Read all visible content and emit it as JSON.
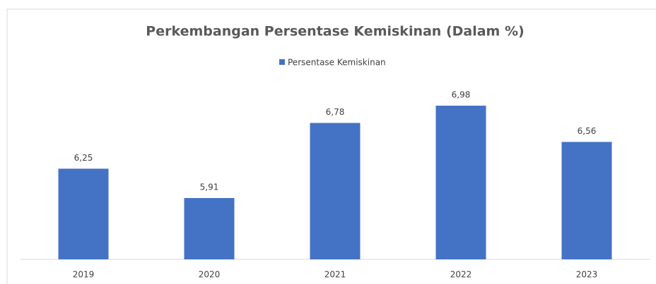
{
  "chart_data": {
    "type": "bar",
    "title": "Perkembangan Persentase Kemiskinan (Dalam %)",
    "categories": [
      "2019",
      "2020",
      "2021",
      "2022",
      "2023"
    ],
    "series": [
      {
        "name": "Persentase Kemiskinan",
        "color": "#4472c4",
        "values": [
          6.25,
          5.91,
          6.78,
          6.98,
          6.56
        ],
        "value_labels": [
          "6,25",
          "5,91",
          "6,78",
          "6,98",
          "6,56"
        ]
      }
    ],
    "ylim": [
      5.2,
      7.2
    ],
    "legend": "top"
  }
}
